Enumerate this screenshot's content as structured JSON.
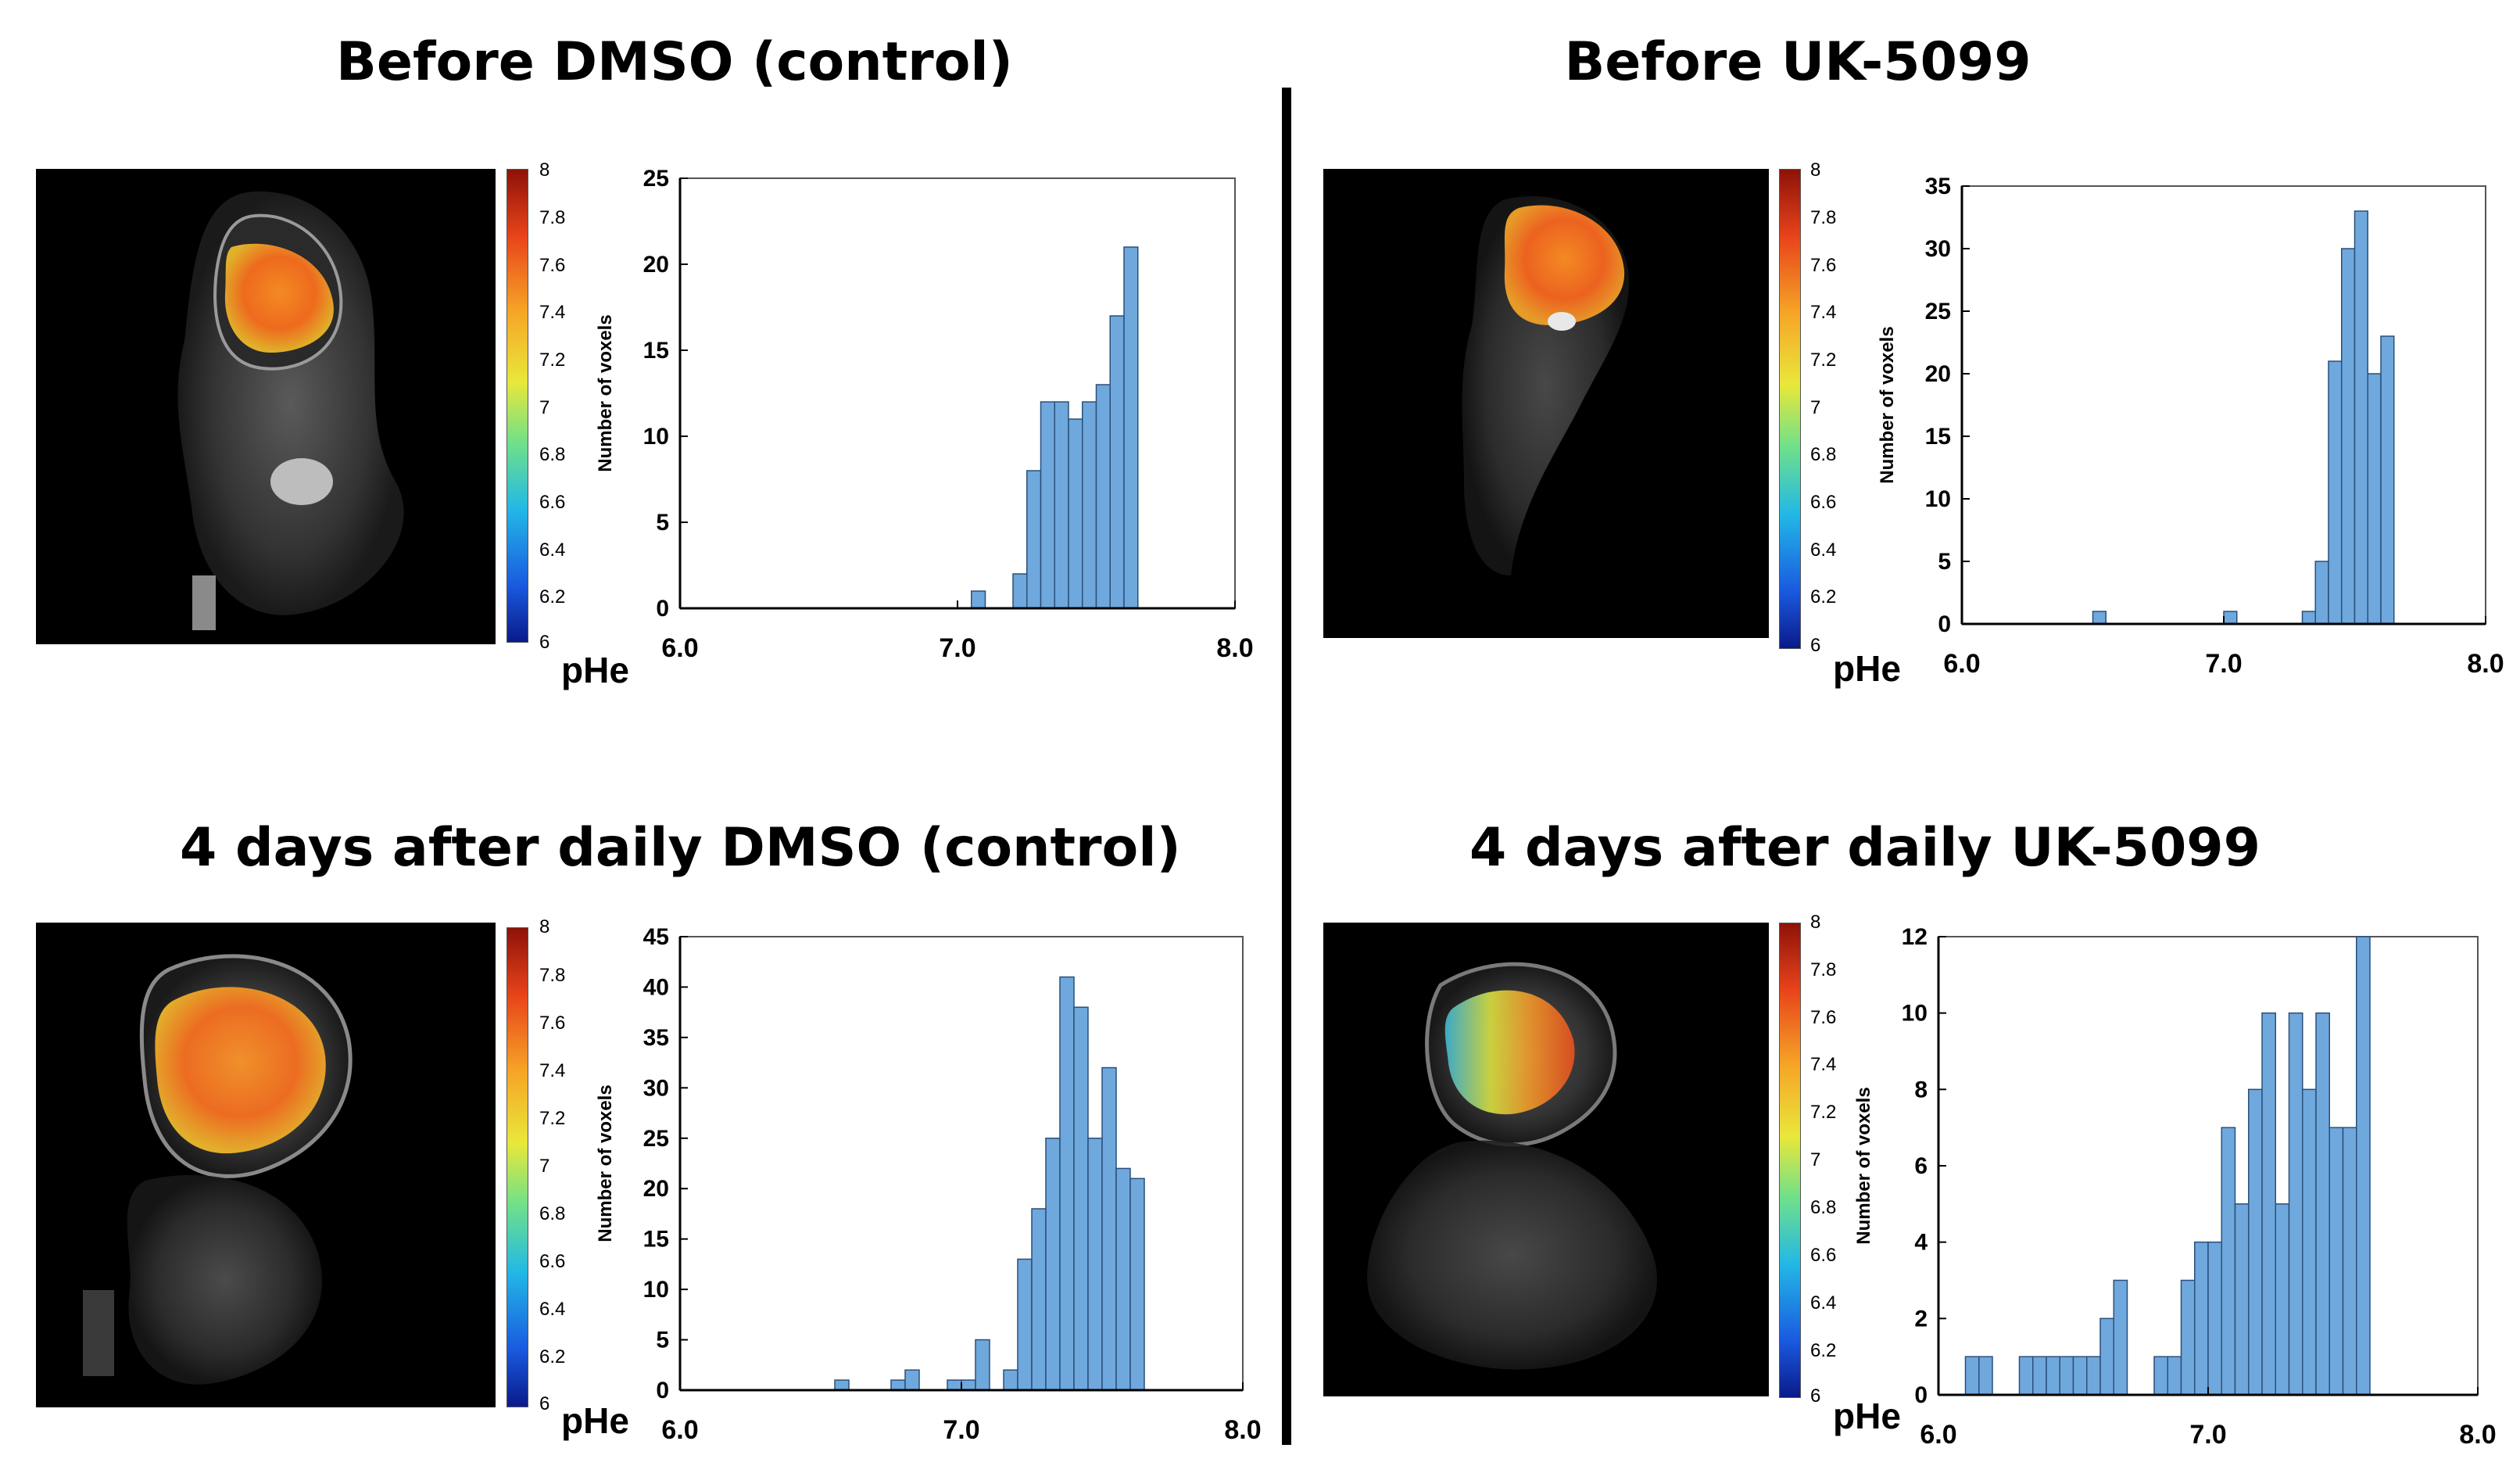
{
  "panels": [
    {
      "title": "Before DMSO (control)",
      "colorbar": {
        "ticks": [
          "8",
          "7.8",
          "7.6",
          "7.4",
          "7.2",
          "7",
          "6.8",
          "6.6",
          "6.4",
          "6.2",
          "6"
        ],
        "label": "pHe"
      }
    },
    {
      "title": "Before UK-5099",
      "colorbar": {
        "ticks": [
          "8",
          "7.8",
          "7.6",
          "7.4",
          "7.2",
          "7",
          "6.8",
          "6.6",
          "6.4",
          "6.2",
          "6"
        ],
        "label": "pHe"
      }
    },
    {
      "title": "4 days after daily DMSO (control)",
      "colorbar": {
        "ticks": [
          "8",
          "7.8",
          "7.6",
          "7.4",
          "7.2",
          "7",
          "6.8",
          "6.6",
          "6.4",
          "6.2",
          "6"
        ],
        "label": "pHe"
      }
    },
    {
      "title": "4 days after daily UK-5099",
      "colorbar": {
        "ticks": [
          "8",
          "7.8",
          "7.6",
          "7.4",
          "7.2",
          "7",
          "6.8",
          "6.6",
          "6.4",
          "6.2",
          "6"
        ],
        "label": "pHe"
      }
    }
  ],
  "colors": {
    "bar_fill": "#6fa8dc",
    "bar_stroke": "#2a4f7a",
    "axis": "#000000",
    "frame": "#555555"
  },
  "chart_data": [
    {
      "type": "bar",
      "panel": "Before DMSO (control)",
      "xlabel": "pHe",
      "ylabel": "Number of voxels",
      "xlim": [
        6.0,
        8.0
      ],
      "ylim": [
        0,
        25
      ],
      "xticks": [
        {
          "v": 6.0,
          "label": "6.0"
        },
        {
          "v": 7.0,
          "label": "7.0"
        },
        {
          "v": 8.0,
          "label": "8.0"
        }
      ],
      "yticks": [
        0,
        5,
        10,
        15,
        20,
        25
      ],
      "bin_width": 0.05,
      "bins": [
        [
          7.05,
          1
        ],
        [
          7.2,
          2
        ],
        [
          7.25,
          8
        ],
        [
          7.3,
          12
        ],
        [
          7.35,
          12
        ],
        [
          7.4,
          11
        ],
        [
          7.45,
          12
        ],
        [
          7.5,
          13
        ],
        [
          7.55,
          17
        ],
        [
          7.6,
          21
        ]
      ]
    },
    {
      "type": "bar",
      "panel": "Before UK-5099",
      "xlabel": "pHe",
      "ylabel": "Number of voxels",
      "xlim": [
        6.0,
        8.0
      ],
      "ylim": [
        0,
        35
      ],
      "xticks": [
        {
          "v": 6.0,
          "label": "6.0"
        },
        {
          "v": 7.0,
          "label": "7.0"
        },
        {
          "v": 8.0,
          "label": "8.0"
        }
      ],
      "yticks": [
        0,
        5,
        10,
        15,
        20,
        25,
        30,
        35
      ],
      "bin_width": 0.05,
      "bins": [
        [
          6.5,
          1
        ],
        [
          7.0,
          1
        ],
        [
          7.3,
          1
        ],
        [
          7.35,
          5
        ],
        [
          7.4,
          21
        ],
        [
          7.45,
          30
        ],
        [
          7.5,
          33
        ],
        [
          7.55,
          20
        ],
        [
          7.6,
          23
        ]
      ]
    },
    {
      "type": "bar",
      "panel": "4 days after daily DMSO (control)",
      "xlabel": "pHe",
      "ylabel": "Number of voxels",
      "xlim": [
        6.0,
        8.0
      ],
      "ylim": [
        0,
        45
      ],
      "xticks": [
        {
          "v": 6.0,
          "label": "6.0"
        },
        {
          "v": 7.0,
          "label": "7.0"
        },
        {
          "v": 8.0,
          "label": "8.0"
        }
      ],
      "yticks": [
        0,
        5,
        10,
        15,
        20,
        25,
        30,
        35,
        40,
        45
      ],
      "bin_width": 0.05,
      "bins": [
        [
          6.55,
          1
        ],
        [
          6.75,
          1
        ],
        [
          6.8,
          2
        ],
        [
          6.95,
          1
        ],
        [
          7.0,
          1
        ],
        [
          7.05,
          5
        ],
        [
          7.15,
          2
        ],
        [
          7.2,
          13
        ],
        [
          7.25,
          18
        ],
        [
          7.3,
          25
        ],
        [
          7.35,
          41
        ],
        [
          7.4,
          38
        ],
        [
          7.45,
          25
        ],
        [
          7.5,
          32
        ],
        [
          7.55,
          22
        ],
        [
          7.6,
          21
        ]
      ]
    },
    {
      "type": "bar",
      "panel": "4 days after daily UK-5099",
      "xlabel": "pHe",
      "ylabel": "Number of voxels",
      "xlim": [
        6.0,
        8.0
      ],
      "ylim": [
        0,
        12
      ],
      "xticks": [
        {
          "v": 6.0,
          "label": "6.0"
        },
        {
          "v": 7.0,
          "label": "7.0"
        },
        {
          "v": 8.0,
          "label": "8.0"
        }
      ],
      "yticks": [
        0,
        2,
        4,
        6,
        8,
        10,
        12
      ],
      "bin_width": 0.05,
      "bins": [
        [
          6.1,
          1
        ],
        [
          6.15,
          1
        ],
        [
          6.3,
          1
        ],
        [
          6.35,
          1
        ],
        [
          6.4,
          1
        ],
        [
          6.45,
          1
        ],
        [
          6.5,
          1
        ],
        [
          6.55,
          1
        ],
        [
          6.6,
          2
        ],
        [
          6.65,
          3
        ],
        [
          6.8,
          1
        ],
        [
          6.85,
          1
        ],
        [
          6.9,
          3
        ],
        [
          6.95,
          4
        ],
        [
          7.0,
          4
        ],
        [
          7.05,
          7
        ],
        [
          7.1,
          5
        ],
        [
          7.15,
          8
        ],
        [
          7.2,
          10
        ],
        [
          7.25,
          5
        ],
        [
          7.3,
          10
        ],
        [
          7.35,
          8
        ],
        [
          7.4,
          10
        ],
        [
          7.45,
          7
        ],
        [
          7.5,
          7
        ],
        [
          7.55,
          12
        ]
      ]
    }
  ]
}
